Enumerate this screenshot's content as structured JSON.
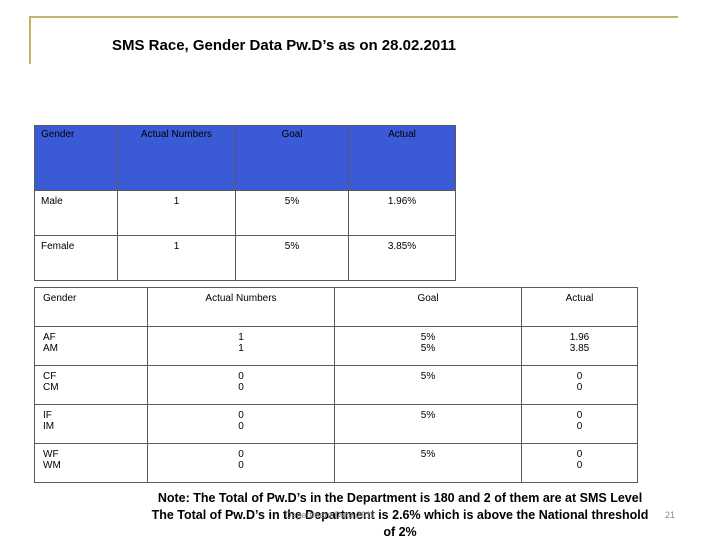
{
  "title": "SMS Race, Gender Data Pw.D’s as on 28.02.2011",
  "table1": {
    "headers": [
      "Gender",
      "Actual Numbers",
      "Goal",
      "Actual"
    ],
    "rows": [
      [
        "Male",
        "1",
        "5%",
        "1.96%"
      ],
      [
        "Female",
        "1",
        "5%",
        "3.85%"
      ]
    ]
  },
  "table2": {
    "headers": [
      "Gender",
      "Actual Numbers",
      "Goal",
      "Actual"
    ],
    "rows": [
      {
        "gender": [
          "AF",
          "AM"
        ],
        "numbers": [
          "1",
          "1"
        ],
        "goal": [
          "5%",
          "5%"
        ],
        "actual": [
          "1.96",
          "3.85"
        ]
      },
      {
        "gender": [
          "CF",
          "CM"
        ],
        "numbers": [
          "0",
          "0"
        ],
        "goal": [
          "5%",
          ""
        ],
        "actual": [
          "0",
          "0"
        ]
      },
      {
        "gender": [
          "IF",
          "IM"
        ],
        "numbers": [
          "0",
          "0"
        ],
        "goal": [
          "5%",
          ""
        ],
        "actual": [
          "0",
          "0"
        ]
      },
      {
        "gender": [
          "WF",
          "WM"
        ],
        "numbers": [
          "0",
          "0"
        ],
        "goal": [
          "5%",
          ""
        ],
        "actual": [
          "0",
          "0"
        ]
      }
    ]
  },
  "note": {
    "line1": "Note: The Total of Pw.D’s in the Department is 180 and 2 of them are at SMS Level",
    "line2": "The Total of Pw.D’s in the Department is 2.6% which is above the National threshold",
    "line3": "of 2%"
  },
  "footer": {
    "date": "Department Date 2011",
    "page": "21"
  },
  "colors": {
    "frame": "#c8b26a",
    "header_fill": "#3b5bd6"
  }
}
